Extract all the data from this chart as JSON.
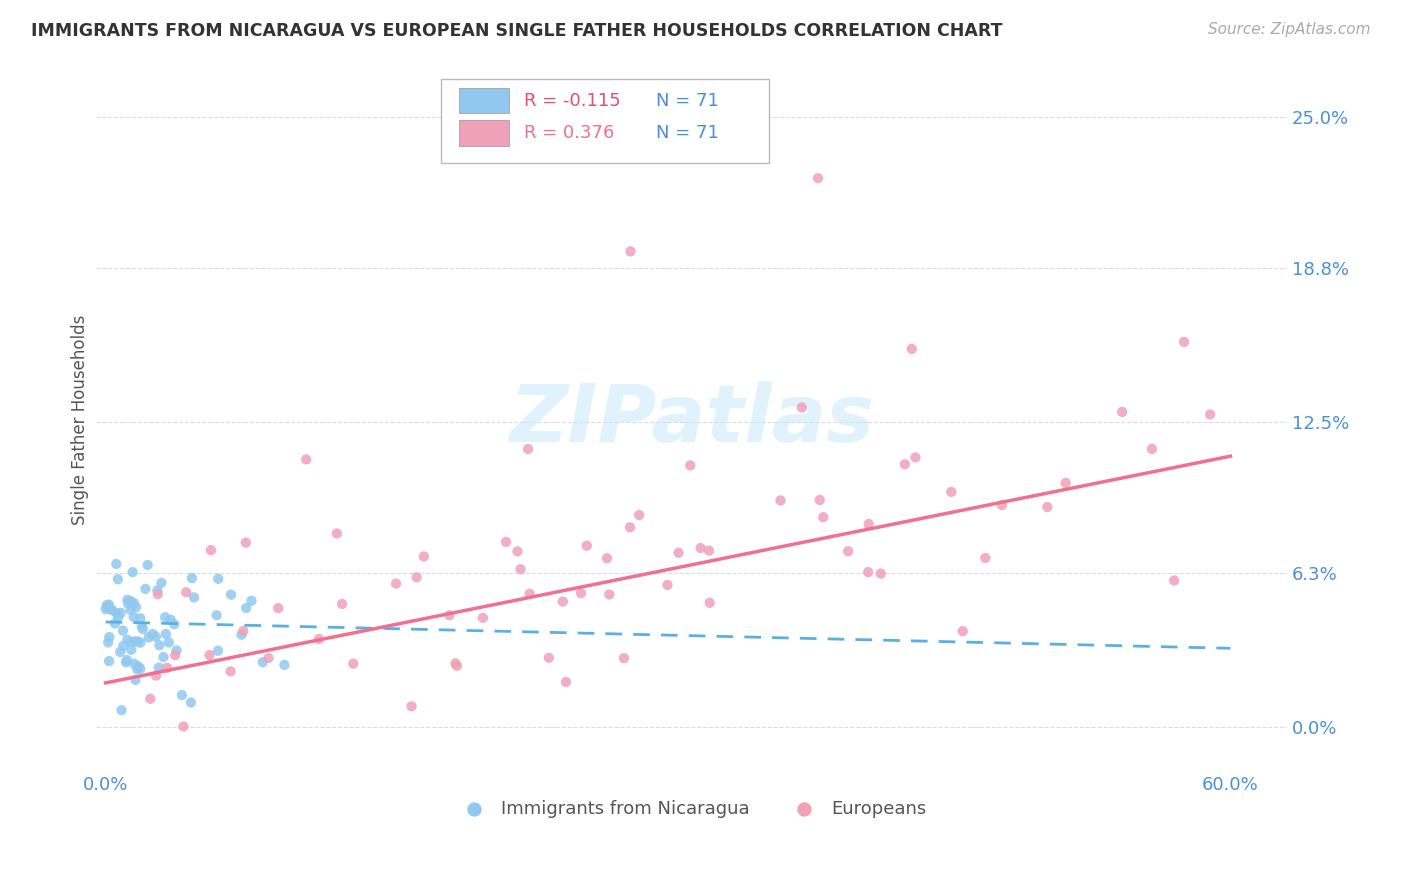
{
  "title": "IMMIGRANTS FROM NICARAGUA VS EUROPEAN SINGLE FATHER HOUSEHOLDS CORRELATION CHART",
  "source_text": "Source: ZipAtlas.com",
  "ylabel": "Single Father Households",
  "xlim": [
    -0.005,
    0.63
  ],
  "ylim": [
    -0.018,
    0.27
  ],
  "ytick_labels": [
    "0.0%",
    "6.3%",
    "12.5%",
    "18.8%",
    "25.0%"
  ],
  "ytick_values": [
    0.0,
    0.063,
    0.125,
    0.188,
    0.25
  ],
  "xtick_labels": [
    "0.0%",
    "60.0%"
  ],
  "xtick_values": [
    0.0,
    0.6
  ],
  "background_color": "#ffffff",
  "grid_color": "#cccccc",
  "title_color": "#333333",
  "tick_color": "#4a90d9",
  "series1_color": "#90c8f0",
  "series2_color": "#f0a0b8",
  "series1_label": "Immigrants from Nicaragua",
  "series2_label": "Europeans",
  "R1": -0.115,
  "N1": 71,
  "R2": 0.376,
  "N2": 71,
  "line1_color": "#5ab0e0",
  "line2_color": "#f07090",
  "R1_text_color": "#e05070",
  "R2_text_color": "#f07090",
  "N_text_color": "#4a90d9",
  "watermark_color": "#c8e8f8"
}
